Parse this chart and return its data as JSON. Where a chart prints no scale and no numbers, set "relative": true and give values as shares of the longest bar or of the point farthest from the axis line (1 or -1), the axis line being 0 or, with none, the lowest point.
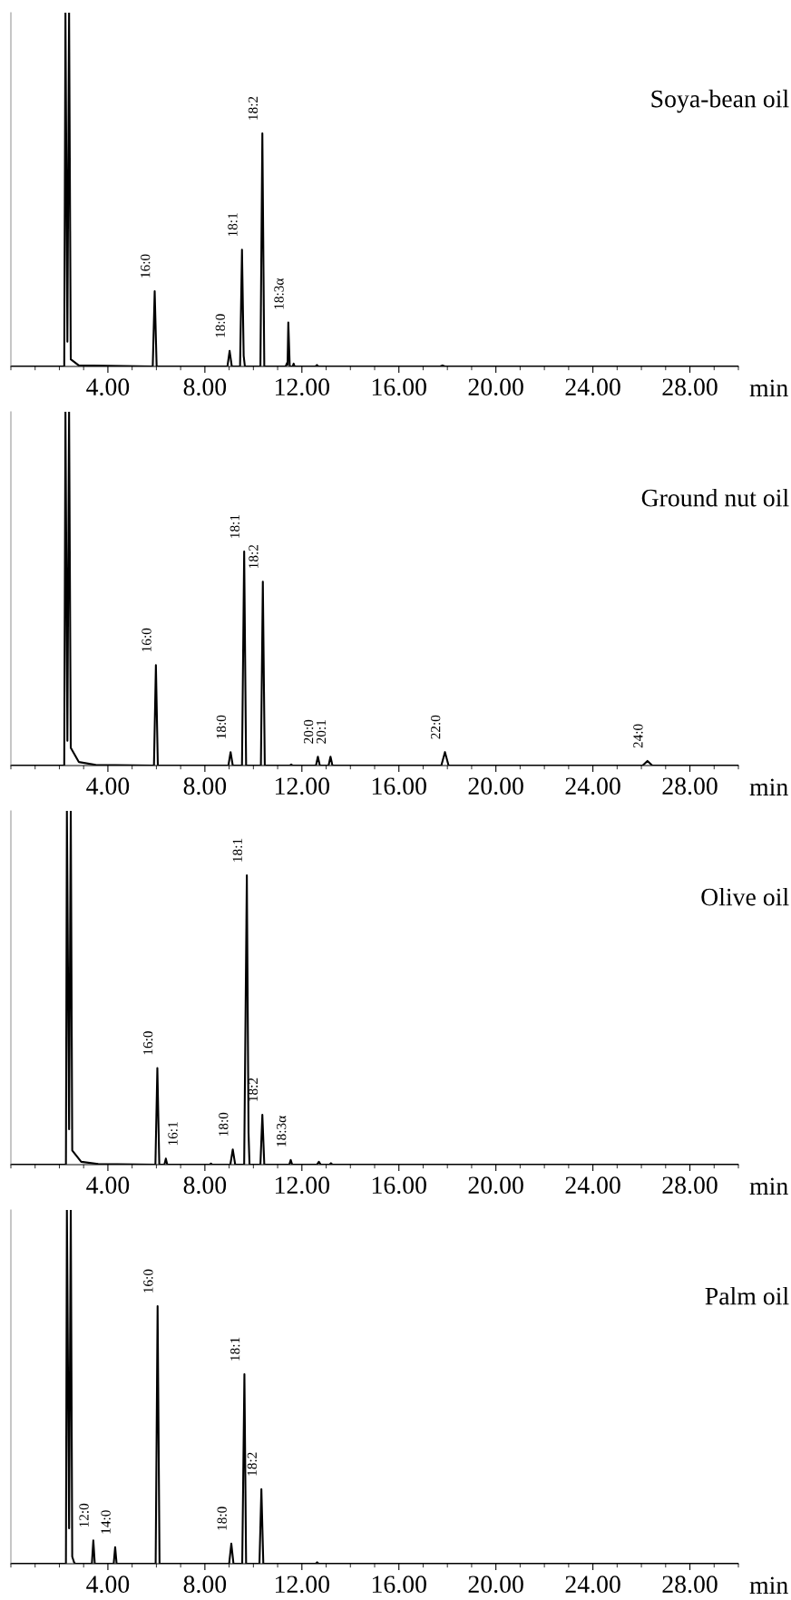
{
  "chart_data": [
    {
      "type": "line",
      "relative": true,
      "title": "Soya-bean oil",
      "xlabel": "min",
      "xlim": [
        0,
        30
      ],
      "xticks": [
        {
          "value": 4,
          "label": "4.00"
        },
        {
          "value": 8,
          "label": "8.00"
        },
        {
          "value": 12,
          "label": "12.00"
        },
        {
          "value": 16,
          "label": "16.00"
        },
        {
          "value": 20,
          "label": "20.00"
        },
        {
          "value": 24,
          "label": "24.00"
        },
        {
          "value": 28,
          "label": "28.00"
        }
      ],
      "series": [
        {
          "color": "#000000",
          "x": [
            0,
            2.2,
            2.25,
            2.33,
            2.4,
            2.47,
            2.8,
            5.85,
            5.93,
            6.01,
            8.93,
            9.02,
            9.11,
            9.45,
            9.53,
            9.6,
            9.65,
            10.29,
            10.37,
            10.45,
            11.33,
            11.39,
            11.41,
            11.44,
            11.5,
            11.62,
            11.66,
            11.7,
            12.56,
            12.62,
            12.68,
            17.7,
            17.8,
            17.9,
            30
          ],
          "values": [
            0,
            0,
            1,
            0.07,
            1,
            0.02,
            0.003,
            0,
            0.213,
            0,
            0,
            0.044,
            0,
            0,
            0.33,
            0.03,
            0,
            0,
            0.659,
            0,
            0,
            0.01,
            0.005,
            0.124,
            0,
            0,
            0.008,
            0,
            0,
            0.004,
            0,
            0,
            0.003,
            0,
            0
          ]
        }
      ],
      "annotations": [
        {
          "text": "16:0",
          "x": 5.93,
          "y": 0.213
        },
        {
          "text": "18:0",
          "x": 9.02,
          "y": 0.044
        },
        {
          "text": "18:1",
          "x": 9.53,
          "y": 0.33
        },
        {
          "text": "18:2",
          "x": 10.37,
          "y": 0.659
        },
        {
          "text": "18:3α",
          "x": 11.44,
          "y": 0.124
        }
      ]
    },
    {
      "type": "line",
      "relative": true,
      "title": "Ground nut oil",
      "xlabel": "min",
      "xlim": [
        0,
        30
      ],
      "xticks": [
        {
          "value": 4,
          "label": "4.00"
        },
        {
          "value": 8,
          "label": "8.00"
        },
        {
          "value": 12,
          "label": "12.00"
        },
        {
          "value": 16,
          "label": "16.00"
        },
        {
          "value": 20,
          "label": "20.00"
        },
        {
          "value": 24,
          "label": "24.00"
        },
        {
          "value": 28,
          "label": "28.00"
        }
      ],
      "series": [
        {
          "color": "#000000",
          "x": [
            0,
            2.2,
            2.25,
            2.33,
            2.4,
            2.47,
            2.8,
            3.5,
            5.9,
            5.98,
            6.06,
            8.97,
            9.06,
            9.15,
            9.53,
            9.62,
            9.7,
            10.31,
            10.39,
            10.47,
            11.5,
            11.56,
            11.62,
            12.58,
            12.66,
            12.74,
            13.1,
            13.18,
            13.26,
            17.75,
            17.9,
            18.05,
            26.05,
            26.25,
            26.45,
            30
          ],
          "values": [
            0,
            0,
            1,
            0.07,
            1,
            0.05,
            0.01,
            0.002,
            0,
            0.284,
            0,
            0,
            0.038,
            0,
            0,
            0.605,
            0,
            0,
            0.52,
            0,
            0,
            0.003,
            0,
            0,
            0.025,
            0,
            0,
            0.025,
            0,
            0,
            0.038,
            0,
            0,
            0.013,
            0,
            0
          ]
        }
      ],
      "annotations": [
        {
          "text": "16:0",
          "x": 5.98,
          "y": 0.284
        },
        {
          "text": "18:0",
          "x": 9.06,
          "y": 0.038
        },
        {
          "text": "18:1",
          "x": 9.62,
          "y": 0.605
        },
        {
          "text": "18:2",
          "x": 10.39,
          "y": 0.52
        },
        {
          "text": "20:0",
          "x": 12.66,
          "y": 0.025
        },
        {
          "text": "20:1",
          "x": 13.18,
          "y": 0.025
        },
        {
          "text": "22:0",
          "x": 17.9,
          "y": 0.038
        },
        {
          "text": "24:0",
          "x": 26.25,
          "y": 0.013
        }
      ]
    },
    {
      "type": "line",
      "relative": true,
      "title": "Olive oil",
      "xlabel": "min",
      "xlim": [
        0,
        30
      ],
      "xticks": [
        {
          "value": 4,
          "label": "4.00"
        },
        {
          "value": 8,
          "label": "8.00"
        },
        {
          "value": 12,
          "label": "12.00"
        },
        {
          "value": 16,
          "label": "16.00"
        },
        {
          "value": 20,
          "label": "20.00"
        },
        {
          "value": 24,
          "label": "24.00"
        },
        {
          "value": 28,
          "label": "28.00"
        }
      ],
      "series": [
        {
          "color": "#000000",
          "x": [
            0,
            2.27,
            2.31,
            2.4,
            2.47,
            2.53,
            2.9,
            3.6,
            5.96,
            6.04,
            6.12,
            6.33,
            6.39,
            6.45,
            8.2,
            8.25,
            8.3,
            9.05,
            9.15,
            9.25,
            9.62,
            9.73,
            9.8,
            9.84,
            10.29,
            10.37,
            10.45,
            11.48,
            11.54,
            11.6,
            12.62,
            12.7,
            12.78,
            13.14,
            13.2,
            13.26,
            30
          ],
          "values": [
            0,
            0,
            1,
            0.1,
            1,
            0.04,
            0.008,
            0.002,
            0,
            0.273,
            0,
            0,
            0.017,
            0,
            0,
            0.003,
            0,
            0,
            0.043,
            0,
            0,
            0.818,
            0.09,
            0,
            0,
            0.141,
            0,
            0,
            0.013,
            0,
            0,
            0.008,
            0,
            0,
            0.004,
            0,
            0
          ]
        }
      ],
      "annotations": [
        {
          "text": "16:0",
          "x": 6.04,
          "y": 0.273
        },
        {
          "text": "16:1",
          "x": 6.39,
          "y": 0.017
        },
        {
          "text": "18:0",
          "x": 9.15,
          "y": 0.043
        },
        {
          "text": "18:1",
          "x": 9.73,
          "y": 0.818
        },
        {
          "text": "18:2",
          "x": 10.37,
          "y": 0.141
        },
        {
          "text": "18:3α",
          "x": 11.54,
          "y": 0.013
        }
      ]
    },
    {
      "type": "line",
      "relative": true,
      "title": "Palm oil",
      "xlabel": "min",
      "xlim": [
        0,
        30
      ],
      "xticks": [
        {
          "value": 4,
          "label": "4.00"
        },
        {
          "value": 8,
          "label": "8.00"
        },
        {
          "value": 12,
          "label": "12.00"
        },
        {
          "value": 16,
          "label": "16.00"
        },
        {
          "value": 20,
          "label": "20.00"
        },
        {
          "value": 24,
          "label": "24.00"
        },
        {
          "value": 28,
          "label": "28.00"
        }
      ],
      "series": [
        {
          "color": "#000000",
          "x": [
            0,
            2.27,
            2.31,
            2.4,
            2.47,
            2.53,
            2.6,
            2.65,
            2.7,
            3.34,
            3.4,
            3.46,
            4.24,
            4.3,
            4.36,
            5.97,
            6.05,
            6.13,
            9.0,
            9.09,
            9.18,
            9.54,
            9.63,
            9.7,
            10.25,
            10.33,
            10.41,
            12.57,
            12.63,
            12.69,
            30
          ],
          "values": [
            0,
            0,
            1,
            0.1,
            1,
            0.02,
            0.005,
            0,
            0,
            0,
            0.066,
            0,
            0,
            0.047,
            0,
            0,
            0.728,
            0,
            0,
            0.057,
            0,
            0,
            0.536,
            0,
            0,
            0.211,
            0,
            0,
            0.004,
            0,
            0
          ]
        }
      ],
      "annotations": [
        {
          "text": "12:0",
          "x": 3.4,
          "y": 0.066
        },
        {
          "text": "14:0",
          "x": 4.3,
          "y": 0.047
        },
        {
          "text": "16:0",
          "x": 6.05,
          "y": 0.728
        },
        {
          "text": "18:0",
          "x": 9.09,
          "y": 0.057
        },
        {
          "text": "18:1",
          "x": 9.63,
          "y": 0.536
        },
        {
          "text": "18:2",
          "x": 10.33,
          "y": 0.211
        }
      ]
    }
  ]
}
